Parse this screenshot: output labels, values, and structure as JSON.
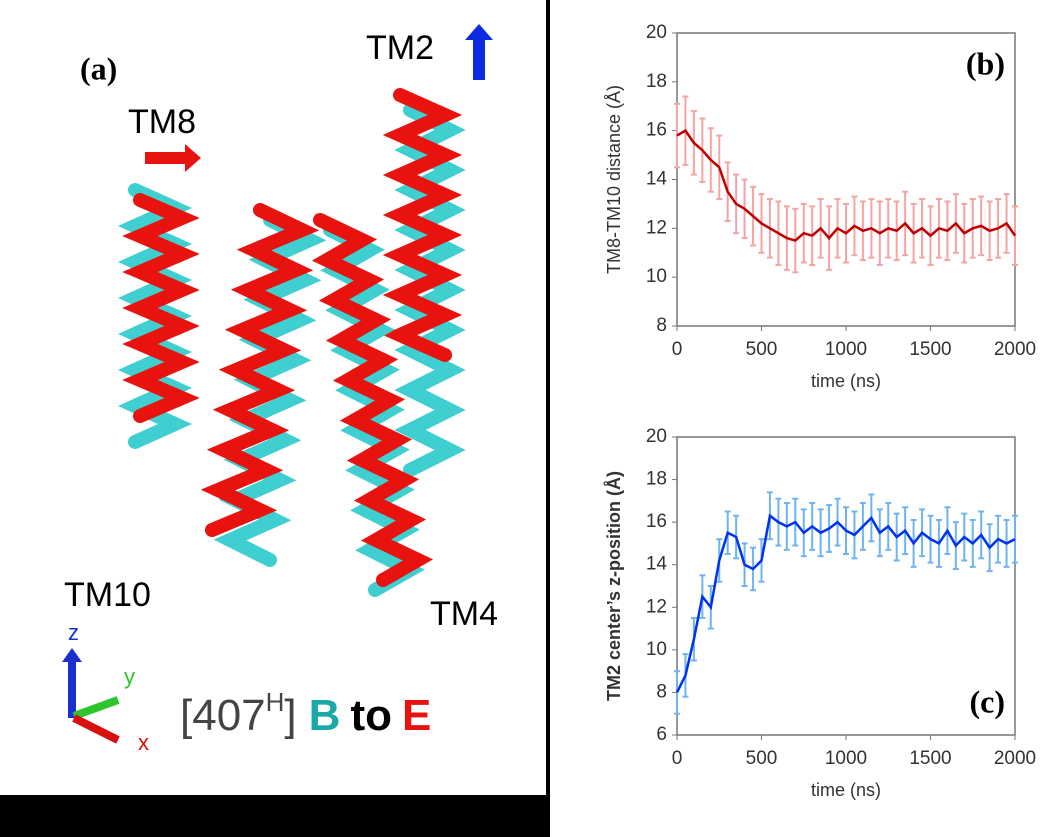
{
  "panel_a": {
    "label": "(a)",
    "helix_labels": [
      "TM8",
      "TM2",
      "TM10",
      "TM4"
    ],
    "axes": [
      "z",
      "y",
      "x"
    ],
    "caption": [
      "[407",
      "H",
      "]",
      "B",
      "to",
      "E"
    ]
  },
  "chart_data": [
    {
      "type": "line",
      "title": "(b)",
      "xlabel": "time (ns)",
      "ylabel": "TM8-TM10 distance (Å)",
      "x": [
        0,
        50,
        100,
        150,
        200,
        250,
        300,
        350,
        400,
        450,
        500,
        550,
        600,
        650,
        700,
        750,
        800,
        850,
        900,
        950,
        1000,
        1050,
        1100,
        1150,
        1200,
        1250,
        1300,
        1350,
        1400,
        1450,
        1500,
        1550,
        1600,
        1650,
        1700,
        1750,
        1800,
        1850,
        1900,
        1950,
        2000
      ],
      "series": [
        {
          "color": "#c00000",
          "error_color": "#f4a4a4",
          "values": [
            15.8,
            16.0,
            15.5,
            15.2,
            14.8,
            14.5,
            13.5,
            13.0,
            12.8,
            12.5,
            12.2,
            12.0,
            11.8,
            11.6,
            11.5,
            11.8,
            11.7,
            12.0,
            11.6,
            12.0,
            11.8,
            12.1,
            11.9,
            12.0,
            11.8,
            12.0,
            11.9,
            12.2,
            11.8,
            12.0,
            11.7,
            12.0,
            11.9,
            12.2,
            11.8,
            12.0,
            12.1,
            11.9,
            12.0,
            12.2,
            11.7
          ],
          "errors": [
            1.3,
            1.4,
            1.3,
            1.3,
            1.3,
            1.3,
            1.2,
            1.2,
            1.2,
            1.2,
            1.2,
            1.2,
            1.3,
            1.3,
            1.3,
            1.2,
            1.2,
            1.2,
            1.3,
            1.2,
            1.2,
            1.2,
            1.2,
            1.2,
            1.3,
            1.2,
            1.2,
            1.3,
            1.2,
            1.2,
            1.2,
            1.2,
            1.2,
            1.2,
            1.2,
            1.2,
            1.2,
            1.2,
            1.2,
            1.2,
            1.2
          ]
        }
      ],
      "xlim": [
        0,
        2000
      ],
      "xticks": [
        0,
        500,
        1000,
        1500,
        2000
      ],
      "ylim": [
        8,
        20
      ],
      "yticks": [
        8,
        10,
        12,
        14,
        16,
        18,
        20
      ]
    },
    {
      "type": "line",
      "title": "(c)",
      "xlabel": "time (ns)",
      "ylabel": "TM2 center’s z-position (Å)",
      "x": [
        0,
        50,
        100,
        150,
        200,
        250,
        300,
        350,
        400,
        450,
        500,
        550,
        600,
        650,
        700,
        750,
        800,
        850,
        900,
        950,
        1000,
        1050,
        1100,
        1150,
        1200,
        1250,
        1300,
        1350,
        1400,
        1450,
        1500,
        1550,
        1600,
        1650,
        1700,
        1750,
        1800,
        1850,
        1900,
        1950,
        2000
      ],
      "series": [
        {
          "color": "#0033ee",
          "error_color": "#6fb4f0",
          "values": [
            8.0,
            8.8,
            10.5,
            12.5,
            12.0,
            14.2,
            15.5,
            15.3,
            14.0,
            13.8,
            14.2,
            16.3,
            16.0,
            15.8,
            16.0,
            15.5,
            15.8,
            15.5,
            15.7,
            16.0,
            15.6,
            15.4,
            15.8,
            16.2,
            15.5,
            15.8,
            15.3,
            15.6,
            15.0,
            15.5,
            15.2,
            15.0,
            15.6,
            14.9,
            15.3,
            15.0,
            15.4,
            14.8,
            15.2,
            15.0,
            15.2
          ],
          "errors": [
            1.0,
            1.0,
            1.0,
            1.0,
            1.0,
            1.0,
            1.0,
            1.0,
            1.0,
            1.0,
            1.0,
            1.1,
            1.1,
            1.1,
            1.1,
            1.1,
            1.1,
            1.1,
            1.1,
            1.1,
            1.1,
            1.1,
            1.1,
            1.1,
            1.1,
            1.1,
            1.1,
            1.1,
            1.1,
            1.1,
            1.1,
            1.1,
            1.1,
            1.1,
            1.1,
            1.1,
            1.1,
            1.1,
            1.1,
            1.1,
            1.1
          ]
        }
      ],
      "xlim": [
        0,
        2000
      ],
      "xticks": [
        0,
        500,
        1000,
        1500,
        2000
      ],
      "ylim": [
        6,
        20
      ],
      "yticks": [
        6,
        8,
        10,
        12,
        14,
        16,
        18,
        20
      ]
    }
  ]
}
